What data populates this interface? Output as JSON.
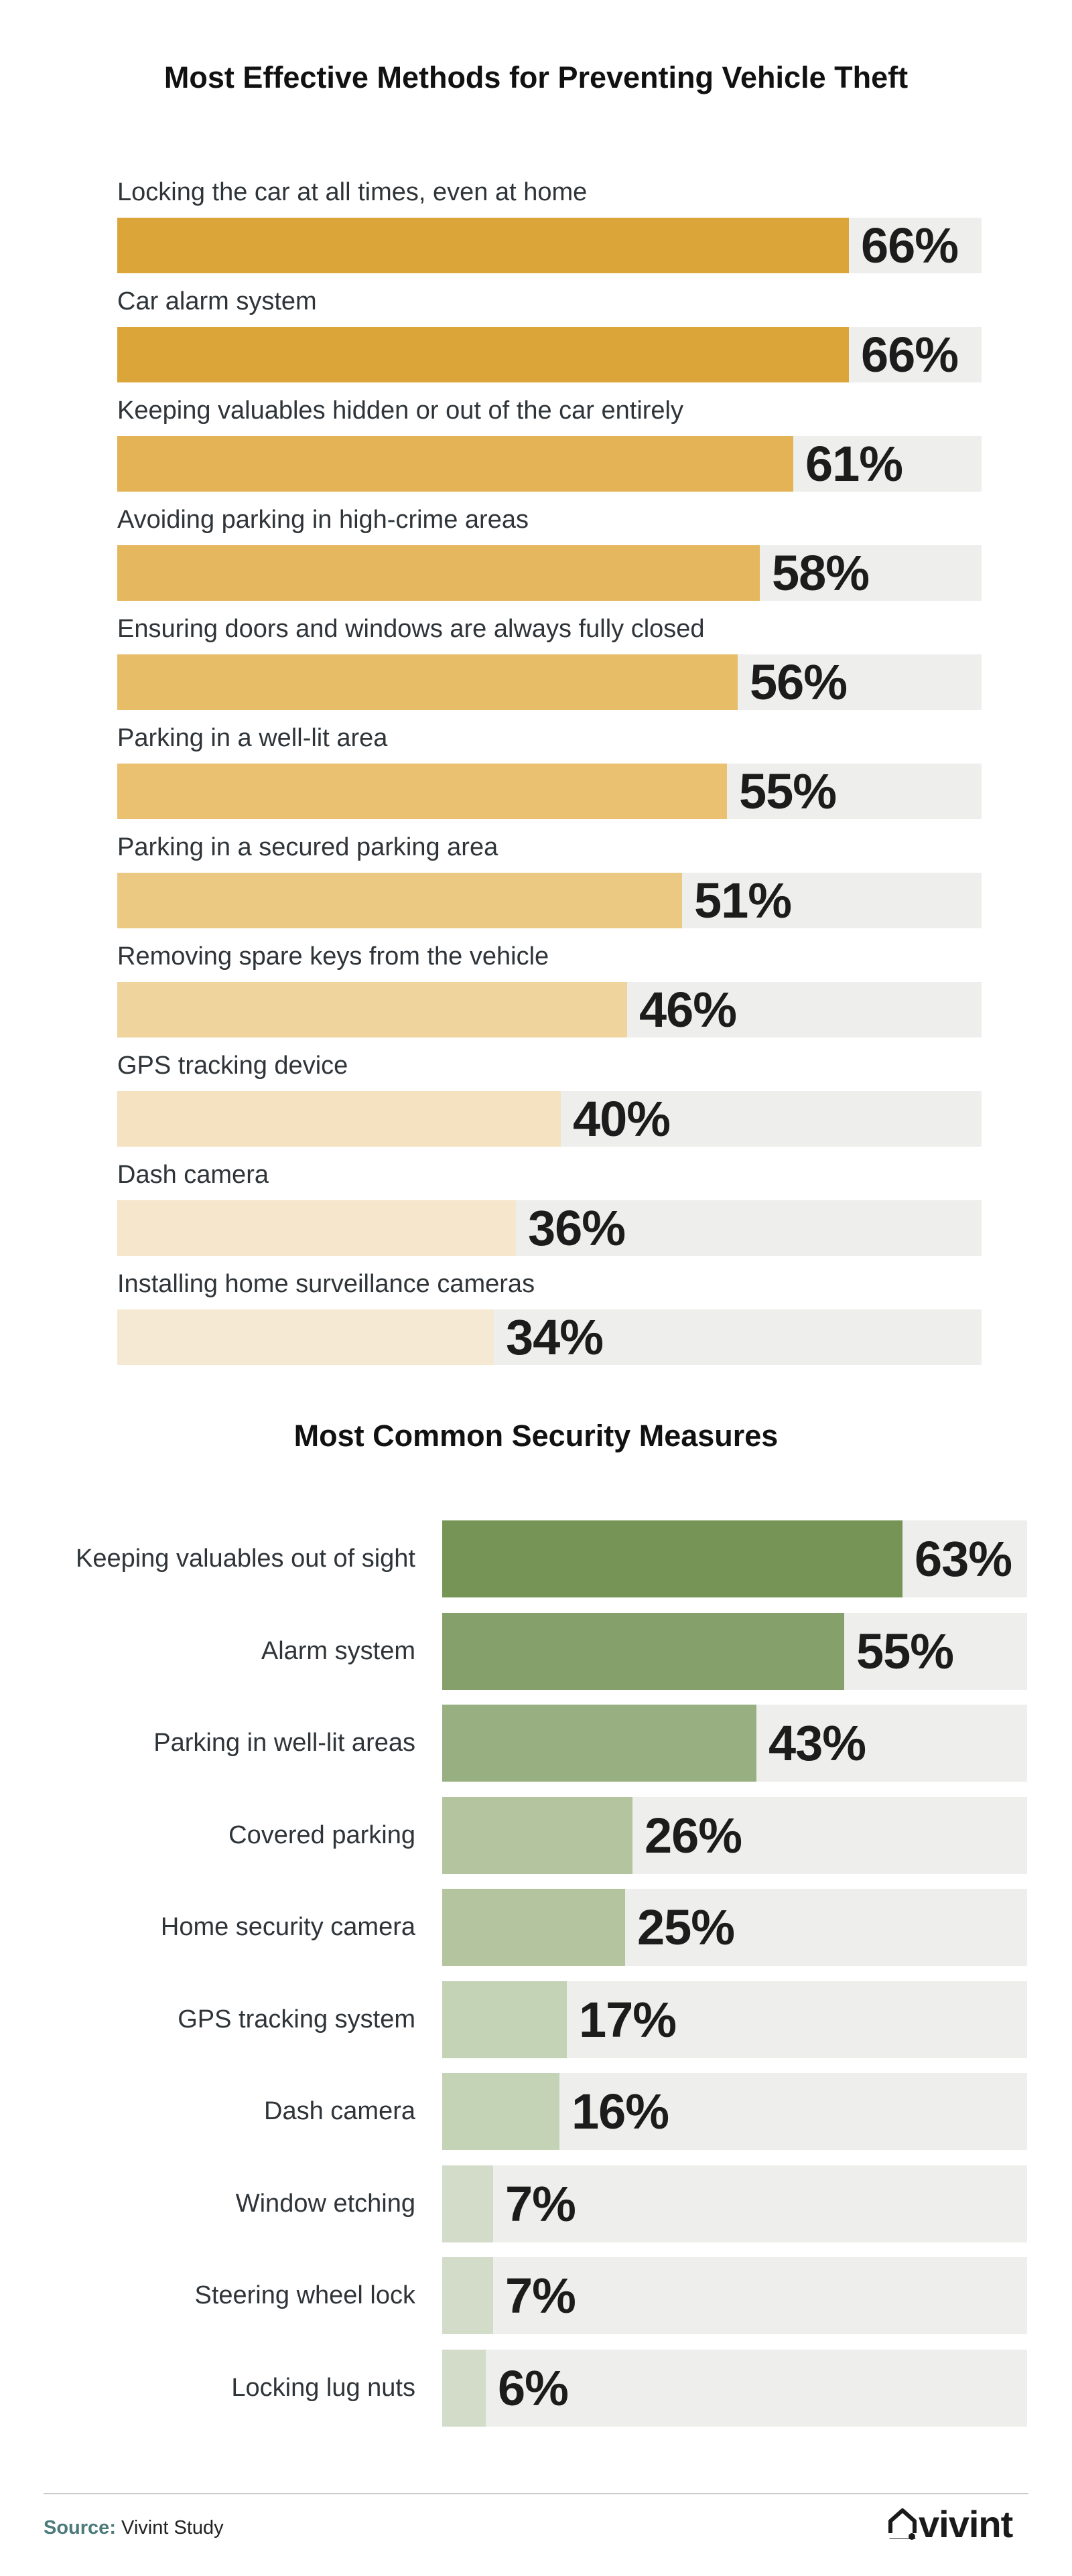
{
  "colors": {
    "track": "#eeeeec",
    "chart1_fills": [
      "#dca53a",
      "#dca53a",
      "#e3b356",
      "#e5b860",
      "#e8bd68",
      "#eac171",
      "#ecc982",
      "#f0d49d",
      "#f4e2c1",
      "#f5e6cc",
      "#f6e9d4"
    ],
    "chart2_fills": [
      "#759455",
      "#86a06b",
      "#98af81",
      "#b3c49f",
      "#b3c49f",
      "#c4d2b5",
      "#c4d2b5",
      "#d3dcc9",
      "#d3dcc9",
      "#d3dcc9"
    ]
  },
  "chart_data": [
    {
      "type": "bar",
      "orientation": "horizontal",
      "title": "Most Effective Methods for Preventing Vehicle Theft",
      "categories": [
        "Locking the car at all times, even at home",
        "Car alarm system",
        "Keeping valuables hidden or out of the car entirely",
        "Avoiding parking in high-crime areas",
        "Ensuring doors and windows are always fully closed",
        "Parking in a well-lit area",
        "Parking in a secured parking area",
        "Removing spare keys from the vehicle",
        "GPS tracking device",
        "Dash camera",
        "Installing home surveillance cameras"
      ],
      "values": [
        66,
        66,
        61,
        58,
        56,
        55,
        51,
        46,
        40,
        36,
        34
      ],
      "value_labels": [
        "66%",
        "66%",
        "61%",
        "58%",
        "56%",
        "55%",
        "51%",
        "46%",
        "40%",
        "36%",
        "34%"
      ],
      "unit": "%",
      "xlim": [
        0,
        78
      ]
    },
    {
      "type": "bar",
      "orientation": "horizontal",
      "title": "Most Common Security Measures",
      "categories": [
        "Keeping valuables out of sight",
        "Alarm system",
        "Parking in well-lit areas",
        "Covered parking",
        "Home security camera",
        "GPS tracking system",
        "Dash camera",
        "Window etching",
        "Steering wheel lock",
        "Locking lug nuts"
      ],
      "values": [
        63,
        55,
        43,
        26,
        25,
        17,
        16,
        7,
        7,
        6
      ],
      "value_labels": [
        "63%",
        "55%",
        "43%",
        "26%",
        "25%",
        "17%",
        "16%",
        "7%",
        "7%",
        "6%"
      ],
      "unit": "%",
      "xlim": [
        0,
        80
      ]
    }
  ],
  "footer": {
    "source_label": "Source:",
    "source_text": "Vivint Study",
    "logo_text": "vivint",
    "logo_icon": "house-icon"
  }
}
